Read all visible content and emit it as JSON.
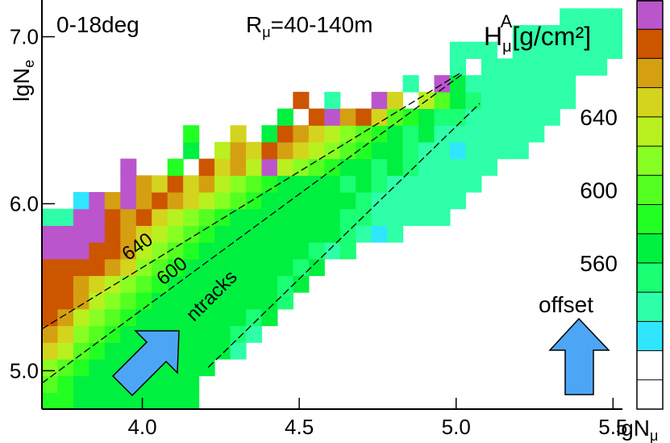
{
  "chart_data": {
    "type": "heatmap",
    "xlabel": {
      "base": "lgN",
      "sub": "μ"
    },
    "ylabel": {
      "base": "lgN",
      "sub": "e"
    },
    "annotations": [
      "0-18deg",
      "offset"
    ],
    "radius_label": {
      "base": "R",
      "sub": "μ",
      "rest": "=40-140m"
    },
    "xlim": [
      3.68,
      5.53
    ],
    "ylim": [
      4.77,
      7.22
    ],
    "xticks": [
      {
        "value": 4.0,
        "label": "4.0"
      },
      {
        "value": 4.5,
        "label": "4.5"
      },
      {
        "value": 5.0,
        "label": "5.0"
      },
      {
        "value": 5.5,
        "label": "5.5"
      }
    ],
    "yticks": [
      {
        "value": 5.0,
        "label": "5.0"
      },
      {
        "value": 6.0,
        "label": "6.0"
      },
      {
        "value": 7.0,
        "label": "7.0"
      }
    ],
    "x_edges": [
      3.68,
      3.73,
      3.78,
      3.83,
      3.88,
      3.93,
      3.98,
      4.03,
      4.08,
      4.13,
      4.18,
      4.23,
      4.28,
      4.33,
      4.38,
      4.43,
      4.48,
      4.53,
      4.58,
      4.63,
      4.68,
      4.73,
      4.78,
      4.83,
      4.88,
      4.93,
      4.98,
      5.03,
      5.08,
      5.13,
      5.18,
      5.23,
      5.28,
      5.33,
      5.38,
      5.43,
      5.48,
      5.53
    ],
    "y_edges": [
      4.77,
      4.87,
      4.97,
      5.07,
      5.17,
      5.27,
      5.37,
      5.47,
      5.57,
      5.67,
      5.77,
      5.87,
      5.97,
      6.07,
      6.17,
      6.27,
      6.37,
      6.47,
      6.57,
      6.67,
      6.77,
      6.87,
      6.97,
      7.07,
      7.17
    ],
    "z": [
      [
        584,
        584,
        568,
        568,
        568,
        568,
        568,
        568,
        568,
        568,
        null,
        null,
        null,
        null,
        null,
        null,
        null,
        null,
        null,
        null,
        null,
        null,
        null,
        null,
        null,
        null,
        null,
        null,
        null,
        null,
        null,
        null,
        null,
        null,
        null,
        null,
        null
      ],
      [
        600,
        584,
        568,
        568,
        568,
        568,
        568,
        568,
        568,
        568,
        null,
        null,
        null,
        null,
        null,
        null,
        null,
        null,
        null,
        null,
        null,
        null,
        null,
        null,
        null,
        null,
        null,
        null,
        null,
        null,
        null,
        null,
        null,
        null,
        null,
        null,
        null
      ],
      [
        616,
        600,
        584,
        568,
        568,
        568,
        568,
        568,
        568,
        568,
        568,
        null,
        null,
        null,
        null,
        null,
        null,
        null,
        null,
        null,
        null,
        null,
        null,
        null,
        null,
        null,
        null,
        null,
        null,
        null,
        null,
        null,
        null,
        null,
        null,
        null,
        null
      ],
      [
        648,
        632,
        600,
        584,
        568,
        568,
        568,
        568,
        568,
        568,
        568,
        568,
        536,
        null,
        null,
        null,
        null,
        null,
        null,
        null,
        null,
        null,
        null,
        null,
        null,
        null,
        null,
        null,
        null,
        null,
        null,
        null,
        null,
        null,
        null,
        null,
        null
      ],
      [
        664,
        648,
        616,
        600,
        584,
        568,
        568,
        568,
        568,
        568,
        568,
        568,
        552,
        536,
        null,
        null,
        null,
        null,
        null,
        null,
        null,
        null,
        null,
        null,
        null,
        null,
        null,
        null,
        null,
        null,
        null,
        null,
        null,
        null,
        null,
        null,
        null
      ],
      [
        680,
        664,
        632,
        616,
        600,
        584,
        568,
        568,
        568,
        568,
        568,
        568,
        568,
        552,
        568,
        null,
        null,
        null,
        null,
        null,
        null,
        null,
        null,
        null,
        null,
        null,
        null,
        null,
        null,
        null,
        null,
        null,
        null,
        null,
        null,
        null,
        null
      ],
      [
        680,
        680,
        664,
        632,
        616,
        600,
        584,
        568,
        568,
        568,
        568,
        568,
        568,
        568,
        568,
        552,
        null,
        null,
        null,
        null,
        null,
        null,
        null,
        null,
        null,
        null,
        null,
        null,
        null,
        null,
        null,
        null,
        null,
        null,
        null,
        null,
        null
      ],
      [
        680,
        680,
        664,
        648,
        632,
        616,
        600,
        584,
        568,
        568,
        568,
        568,
        568,
        568,
        568,
        552,
        568,
        null,
        null,
        null,
        null,
        null,
        null,
        null,
        null,
        null,
        null,
        null,
        null,
        null,
        null,
        null,
        null,
        null,
        null,
        null,
        null
      ],
      [
        680,
        680,
        680,
        680,
        664,
        648,
        616,
        600,
        584,
        568,
        568,
        568,
        568,
        568,
        568,
        568,
        552,
        568,
        null,
        null,
        null,
        null,
        null,
        null,
        null,
        null,
        null,
        null,
        null,
        null,
        null,
        null,
        null,
        null,
        null,
        null,
        null
      ],
      [
        696,
        696,
        696,
        680,
        680,
        664,
        632,
        616,
        600,
        584,
        568,
        568,
        568,
        568,
        568,
        568,
        568,
        552,
        536,
        552,
        null,
        null,
        null,
        null,
        null,
        null,
        null,
        null,
        null,
        null,
        null,
        null,
        null,
        null,
        null,
        null,
        null
      ],
      [
        696,
        696,
        696,
        696,
        680,
        664,
        648,
        632,
        616,
        600,
        584,
        568,
        568,
        568,
        568,
        568,
        568,
        568,
        568,
        552,
        536,
        520,
        536,
        null,
        null,
        null,
        null,
        null,
        null,
        null,
        null,
        null,
        null,
        null,
        null,
        null,
        null
      ],
      [
        536,
        536,
        696,
        696,
        680,
        664,
        680,
        648,
        632,
        616,
        600,
        584,
        568,
        568,
        568,
        568,
        568,
        568,
        568,
        552,
        552,
        536,
        536,
        536,
        536,
        536,
        null,
        null,
        null,
        null,
        null,
        null,
        null,
        null,
        null,
        null,
        null
      ],
      [
        null,
        null,
        520,
        696,
        664,
        696,
        664,
        680,
        664,
        648,
        632,
        616,
        600,
        584,
        568,
        568,
        568,
        568,
        568,
        568,
        552,
        536,
        536,
        536,
        536,
        536,
        536,
        null,
        null,
        null,
        null,
        null,
        null,
        null,
        null,
        null,
        null
      ],
      [
        null,
        null,
        null,
        null,
        null,
        696,
        664,
        648,
        680,
        648,
        664,
        632,
        616,
        600,
        584,
        568,
        568,
        568,
        568,
        552,
        568,
        552,
        536,
        536,
        536,
        536,
        536,
        536,
        null,
        null,
        null,
        null,
        null,
        null,
        null,
        null,
        null
      ],
      [
        null,
        null,
        null,
        null,
        null,
        696,
        null,
        null,
        584,
        null,
        680,
        648,
        664,
        632,
        696,
        632,
        616,
        600,
        584,
        568,
        568,
        552,
        568,
        552,
        536,
        536,
        536,
        536,
        536,
        null,
        null,
        null,
        null,
        null,
        null,
        null,
        null
      ],
      [
        null,
        null,
        null,
        null,
        null,
        null,
        null,
        null,
        null,
        568,
        null,
        632,
        664,
        648,
        680,
        664,
        648,
        632,
        616,
        600,
        584,
        568,
        568,
        552,
        536,
        536,
        520,
        536,
        536,
        536,
        536,
        null,
        null,
        null,
        null,
        null,
        null
      ],
      [
        null,
        null,
        null,
        null,
        null,
        null,
        null,
        null,
        null,
        584,
        null,
        null,
        648,
        null,
        568,
        680,
        664,
        648,
        632,
        616,
        600,
        584,
        568,
        552,
        568,
        536,
        536,
        536,
        536,
        536,
        536,
        536,
        null,
        null,
        null,
        null,
        null
      ],
      [
        null,
        null,
        null,
        null,
        null,
        null,
        null,
        null,
        null,
        null,
        null,
        null,
        null,
        null,
        null,
        568,
        null,
        680,
        696,
        664,
        680,
        648,
        600,
        584,
        568,
        552,
        552,
        536,
        536,
        536,
        536,
        536,
        536,
        null,
        null,
        null,
        null
      ],
      [
        null,
        null,
        null,
        null,
        null,
        null,
        null,
        null,
        null,
        null,
        null,
        null,
        null,
        null,
        null,
        null,
        680,
        null,
        536,
        null,
        null,
        696,
        648,
        null,
        632,
        600,
        568,
        552,
        536,
        536,
        536,
        536,
        536,
        536,
        null,
        null,
        null
      ],
      [
        null,
        null,
        null,
        null,
        null,
        null,
        null,
        null,
        null,
        null,
        null,
        null,
        null,
        null,
        null,
        null,
        null,
        null,
        null,
        null,
        null,
        null,
        null,
        536,
        null,
        696,
        568,
        536,
        536,
        536,
        536,
        536,
        536,
        536,
        null,
        null,
        null
      ],
      [
        null,
        null,
        null,
        null,
        null,
        null,
        null,
        null,
        null,
        null,
        null,
        null,
        null,
        null,
        null,
        null,
        null,
        null,
        null,
        null,
        null,
        null,
        null,
        null,
        null,
        null,
        536,
        null,
        536,
        536,
        536,
        536,
        536,
        536,
        536,
        536,
        null
      ],
      [
        null,
        null,
        null,
        null,
        null,
        null,
        null,
        null,
        null,
        null,
        null,
        null,
        null,
        null,
        null,
        null,
        null,
        null,
        null,
        null,
        null,
        null,
        null,
        null,
        null,
        null,
        536,
        536,
        536,
        null,
        536,
        536,
        536,
        536,
        536,
        536,
        536
      ],
      [
        null,
        null,
        null,
        null,
        null,
        null,
        null,
        null,
        null,
        null,
        null,
        null,
        null,
        null,
        null,
        null,
        null,
        null,
        null,
        null,
        null,
        null,
        null,
        null,
        null,
        null,
        null,
        null,
        null,
        null,
        536,
        536,
        536,
        536,
        536,
        536,
        536
      ],
      [
        null,
        null,
        null,
        null,
        null,
        null,
        null,
        null,
        null,
        null,
        null,
        null,
        null,
        null,
        null,
        null,
        null,
        null,
        null,
        null,
        null,
        null,
        null,
        null,
        null,
        null,
        null,
        null,
        null,
        null,
        null,
        null,
        null,
        536,
        536,
        536,
        536
      ]
    ],
    "colorbar": {
      "label": {
        "base": "H",
        "sub": "μ",
        "sup": "A",
        "unit": "[g/cm²]"
      },
      "levels": [
        480,
        496,
        512,
        528,
        544,
        560,
        576,
        592,
        608,
        624,
        640,
        656,
        672,
        688,
        704
      ],
      "colors": [
        "#ffffff",
        "#ffffff",
        "#30e6ff",
        "#2effa8",
        "#1aff74",
        "#00f040",
        "#22ff22",
        "#55ff22",
        "#88ff22",
        "#b8f020",
        "#d4d41e",
        "#d4a012",
        "#cc5500",
        "#bb55cc"
      ],
      "ticks": [
        560,
        600,
        640
      ]
    },
    "lines": [
      {
        "label": "640",
        "x": [
          3.68,
          5.02
        ],
        "y": [
          5.25,
          6.79
        ]
      },
      {
        "label": "600",
        "x": [
          3.68,
          5.02
        ],
        "y": [
          4.925,
          6.776
        ]
      },
      {
        "label": "ntracks",
        "x": [
          4.21,
          5.075
        ],
        "y": [
          5.02,
          6.6
        ]
      }
    ]
  }
}
